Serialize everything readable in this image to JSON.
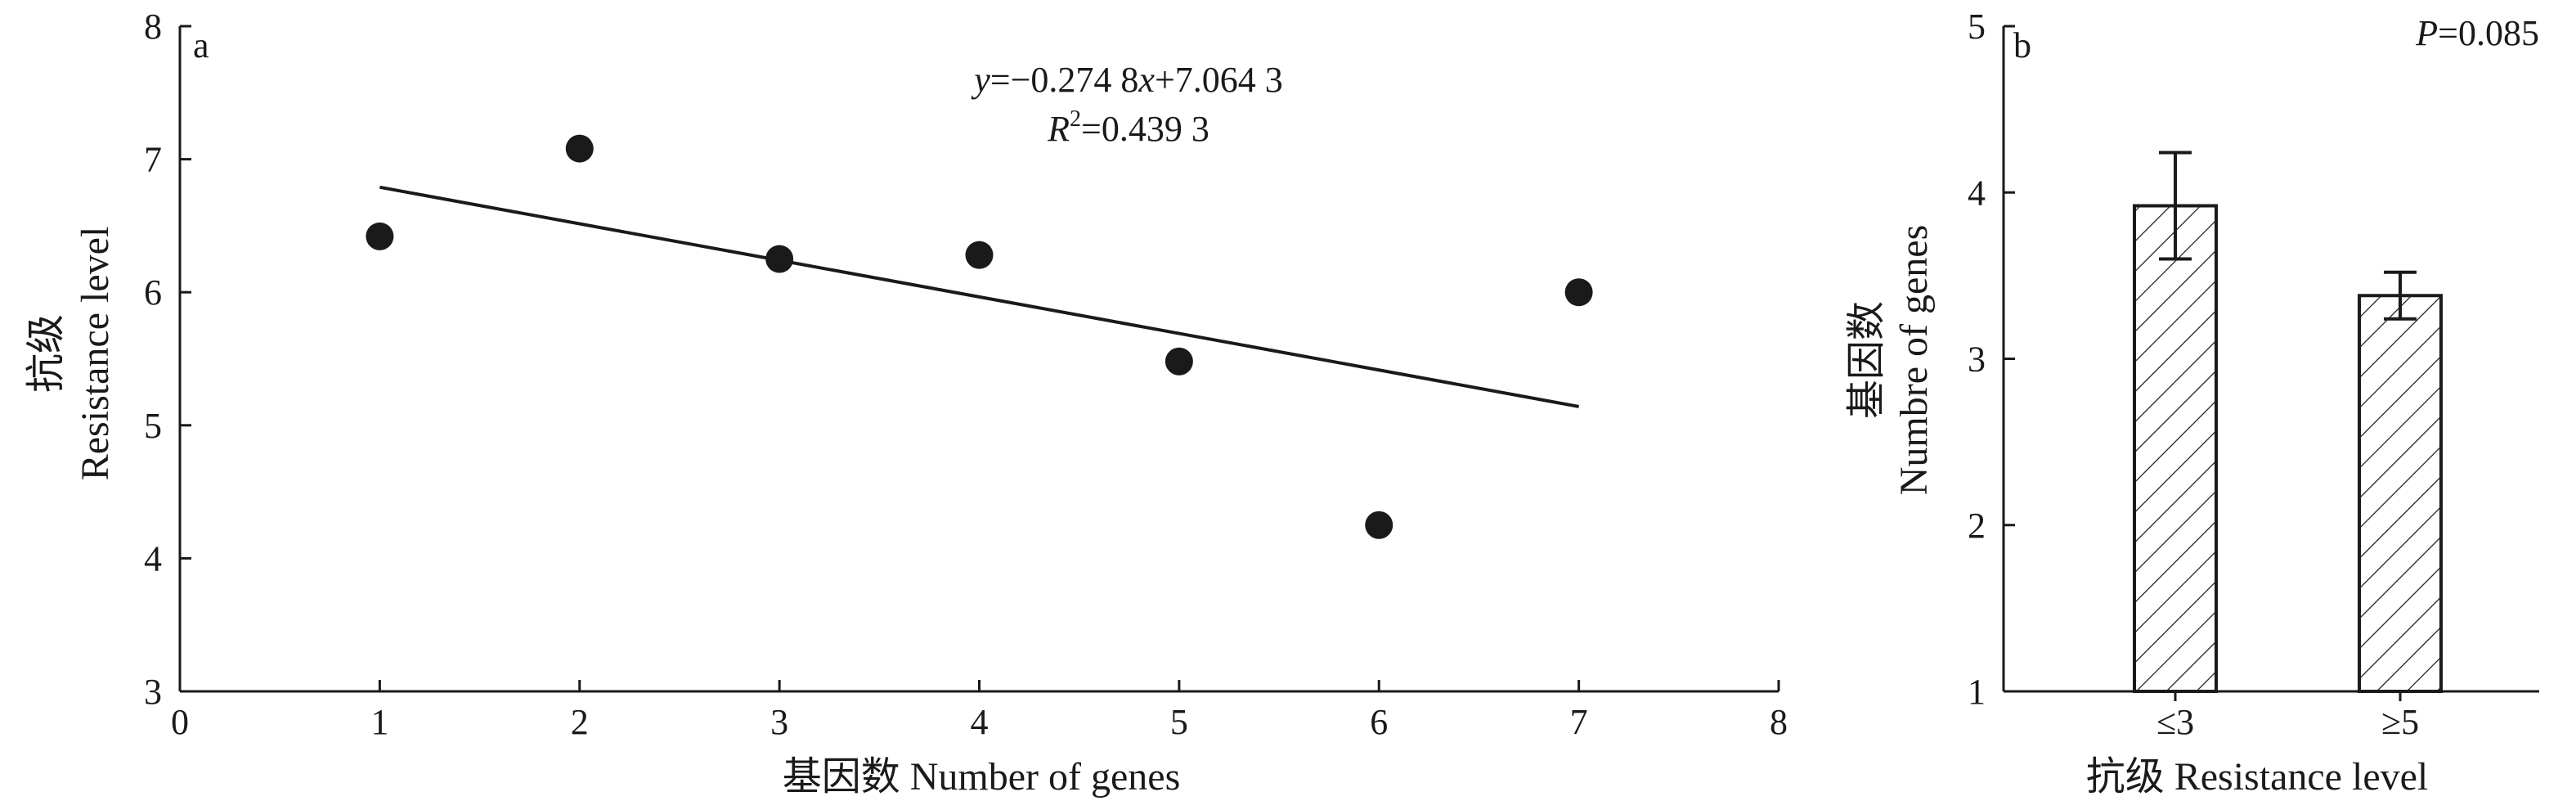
{
  "chart_data": [
    {
      "panel": "a",
      "type": "scatter",
      "xlabel": "基因数 Number of genes",
      "ylabel_cn": "抗级",
      "ylabel_en": "Resistance level",
      "xlim": [
        0,
        8
      ],
      "ylim": [
        3,
        8
      ],
      "xticks": [
        0,
        1,
        2,
        3,
        4,
        5,
        6,
        7,
        8
      ],
      "yticks": [
        3,
        4,
        5,
        6,
        7,
        8
      ],
      "points": [
        {
          "x": 1,
          "y": 6.42
        },
        {
          "x": 2,
          "y": 7.08
        },
        {
          "x": 3,
          "y": 6.25
        },
        {
          "x": 4,
          "y": 6.28
        },
        {
          "x": 5,
          "y": 5.48
        },
        {
          "x": 6,
          "y": 4.25
        },
        {
          "x": 7,
          "y": 6.0
        }
      ],
      "trendline": {
        "slope": -0.2748,
        "intercept": 7.0643,
        "x_range": [
          1,
          7
        ]
      },
      "equation_prefix": "y",
      "equation_rest": "=−0.274 8",
      "equation_var": "x",
      "equation_tail": "+7.064 3",
      "r2_symbol": "R",
      "r2_exp": "2",
      "r2_value": "=0.439 3",
      "grid": false
    },
    {
      "panel": "b",
      "type": "bar",
      "categories": [
        "≤3",
        "≥5"
      ],
      "values": [
        3.92,
        3.38
      ],
      "errors": [
        0.32,
        0.14
      ],
      "hatch": "diagonal",
      "xlabel": "抗级 Resistance level",
      "ylabel_cn": "基因数",
      "ylabel_en": "Numbre of genes",
      "ylim": [
        1,
        5
      ],
      "yticks": [
        1,
        2,
        3,
        4,
        5
      ],
      "p_symbol": "P",
      "p_value": "=0.085",
      "grid": false
    }
  ]
}
